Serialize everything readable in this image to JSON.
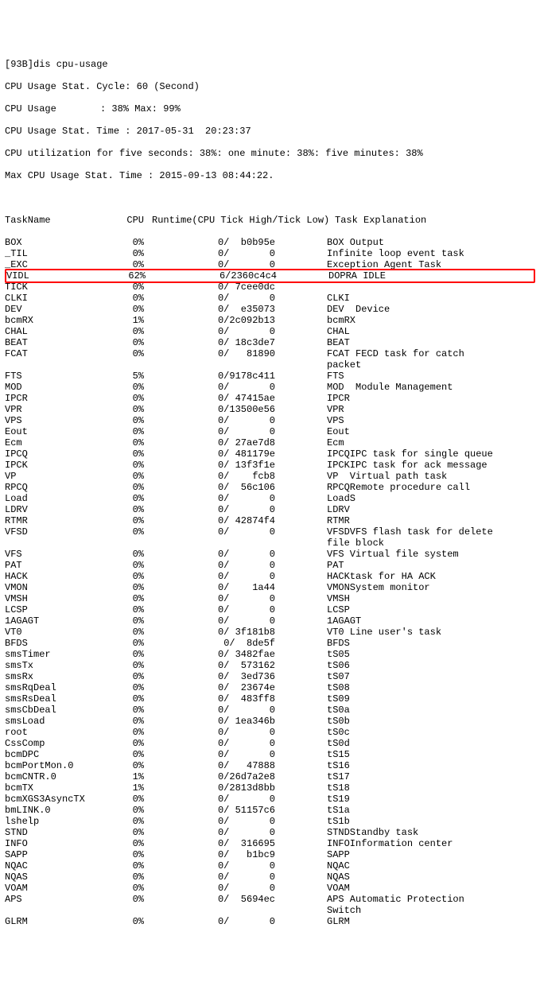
{
  "prompt": "[93B]dis cpu-usage",
  "header": {
    "line1": "CPU Usage Stat. Cycle: 60 (Second)",
    "line2_label": "CPU Usage",
    "line2_value": ": 38% Max: 99%",
    "line3": "CPU Usage Stat. Time : 2017-05-31  20:23:37",
    "line4": "CPU utilization for five seconds: 38%: one minute: 38%: five minutes: 38%",
    "line5": "Max CPU Usage Stat. Time : 2015-09-13 08:44:22."
  },
  "columns": {
    "c1": "TaskName",
    "c2": "CPU",
    "c3": "Runtime(CPU Tick High/Tick Low)",
    "c4": "Task Explanation"
  },
  "highlight_index": 3,
  "rows": [
    {
      "name": "BOX",
      "cpu": "0%",
      "rt": "0/  b0b95e",
      "expl": "BOX Output"
    },
    {
      "name": "_TIL",
      "cpu": "0%",
      "rt": "0/       0",
      "expl": "Infinite loop event task"
    },
    {
      "name": "_EXC",
      "cpu": "0%",
      "rt": "0/       0",
      "expl": "Exception Agent Task"
    },
    {
      "name": "VIDL",
      "cpu": "62%",
      "rt": "6/2360c4c4",
      "expl": "DOPRA IDLE"
    },
    {
      "name": "TICK",
      "cpu": "0%",
      "rt": "0/ 7cee0dc",
      "expl": ""
    },
    {
      "name": "CLKI",
      "cpu": "0%",
      "rt": "0/       0",
      "expl": "CLKI"
    },
    {
      "name": "DEV",
      "cpu": "0%",
      "rt": "0/  e35073",
      "expl": "DEV  Device"
    },
    {
      "name": "bcmRX",
      "cpu": "1%",
      "rt": "0/2c092b13",
      "expl": "bcmRX"
    },
    {
      "name": "CHAL",
      "cpu": "0%",
      "rt": "0/       0",
      "expl": "CHAL"
    },
    {
      "name": "BEAT",
      "cpu": "0%",
      "rt": "0/ 18c3de7",
      "expl": "BEAT"
    },
    {
      "name": "FCAT",
      "cpu": "0%",
      "rt": "0/   81890",
      "expl": "FCAT FECD task for catch"
    },
    {
      "name": "",
      "cpu": "",
      "rt": "",
      "expl": "packet"
    },
    {
      "name": "FTS",
      "cpu": "5%",
      "rt": "0/9178c411",
      "expl": "FTS"
    },
    {
      "name": "MOD",
      "cpu": "0%",
      "rt": "0/       0",
      "expl": "MOD  Module Management"
    },
    {
      "name": "IPCR",
      "cpu": "0%",
      "rt": "0/ 47415ae",
      "expl": "IPCR"
    },
    {
      "name": "VPR",
      "cpu": "0%",
      "rt": "0/13500e56",
      "expl": "VPR"
    },
    {
      "name": "VPS",
      "cpu": "0%",
      "rt": "0/       0",
      "expl": "VPS"
    },
    {
      "name": "Eout",
      "cpu": "0%",
      "rt": "0/       0",
      "expl": "Eout"
    },
    {
      "name": "Ecm",
      "cpu": "0%",
      "rt": "0/ 27ae7d8",
      "expl": "Ecm"
    },
    {
      "name": "IPCQ",
      "cpu": "0%",
      "rt": "0/ 481179e",
      "expl": "IPCQIPC task for single queue"
    },
    {
      "name": "IPCK",
      "cpu": "0%",
      "rt": "0/ 13f3f1e",
      "expl": "IPCKIPC task for ack message"
    },
    {
      "name": "VP",
      "cpu": "0%",
      "rt": "0/    fcb8",
      "expl": "VP  Virtual path task"
    },
    {
      "name": "RPCQ",
      "cpu": "0%",
      "rt": "0/  56c106",
      "expl": "RPCQRemote procedure call"
    },
    {
      "name": "Load",
      "cpu": "0%",
      "rt": "0/       0",
      "expl": "LoadS"
    },
    {
      "name": "LDRV",
      "cpu": "0%",
      "rt": "0/       0",
      "expl": "LDRV"
    },
    {
      "name": "RTMR",
      "cpu": "0%",
      "rt": "0/ 42874f4",
      "expl": "RTMR"
    },
    {
      "name": "VFSD",
      "cpu": "0%",
      "rt": "0/       0",
      "expl": "VFSDVFS flash task for delete"
    },
    {
      "name": "",
      "cpu": "",
      "rt": "",
      "expl": "file block"
    },
    {
      "name": "VFS",
      "cpu": "0%",
      "rt": "0/       0",
      "expl": "VFS Virtual file system"
    },
    {
      "name": "PAT",
      "cpu": "0%",
      "rt": "0/       0",
      "expl": "PAT"
    },
    {
      "name": "HACK",
      "cpu": "0%",
      "rt": "0/       0",
      "expl": "HACKtask for HA ACK"
    },
    {
      "name": "VMON",
      "cpu": "0%",
      "rt": "0/    1a44",
      "expl": "VMONSystem monitor"
    },
    {
      "name": "VMSH",
      "cpu": "0%",
      "rt": "0/       0",
      "expl": "VMSH"
    },
    {
      "name": "LCSP",
      "cpu": "0%",
      "rt": "0/       0",
      "expl": "LCSP"
    },
    {
      "name": "1AGAGT",
      "cpu": "0%",
      "rt": "0/       0",
      "expl": "1AGAGT"
    },
    {
      "name": "VT0",
      "cpu": "0%",
      "rt": "0/ 3f181b8",
      "expl": "VT0 Line user's task"
    },
    {
      "name": "BFDS",
      "cpu": "0%",
      "rt": "0/  8de5f",
      "expl": "BFDS"
    },
    {
      "name": "smsTimer",
      "cpu": "0%",
      "rt": "0/ 3482fae",
      "expl": "tS05"
    },
    {
      "name": "smsTx",
      "cpu": "0%",
      "rt": "0/  573162",
      "expl": "tS06"
    },
    {
      "name": "smsRx",
      "cpu": "0%",
      "rt": "0/  3ed736",
      "expl": "tS07"
    },
    {
      "name": "smsRqDeal",
      "cpu": "0%",
      "rt": "0/  23674e",
      "expl": "tS08"
    },
    {
      "name": "smsRsDeal",
      "cpu": "0%",
      "rt": "0/  483ff8",
      "expl": "tS09"
    },
    {
      "name": "smsCbDeal",
      "cpu": "0%",
      "rt": "0/       0",
      "expl": "tS0a"
    },
    {
      "name": "smsLoad",
      "cpu": "0%",
      "rt": "0/ 1ea346b",
      "expl": "tS0b"
    },
    {
      "name": "root",
      "cpu": "0%",
      "rt": "0/       0",
      "expl": "tS0c"
    },
    {
      "name": "CssComp",
      "cpu": "0%",
      "rt": "0/       0",
      "expl": "tS0d"
    },
    {
      "name": "bcmDPC",
      "cpu": "0%",
      "rt": "0/       0",
      "expl": "tS15"
    },
    {
      "name": "bcmPortMon.0",
      "cpu": "0%",
      "rt": "0/   47888",
      "expl": "tS16"
    },
    {
      "name": "bcmCNTR.0",
      "cpu": "1%",
      "rt": "0/26d7a2e8",
      "expl": "tS17"
    },
    {
      "name": "bcmTX",
      "cpu": "1%",
      "rt": "0/2813d8bb",
      "expl": "tS18"
    },
    {
      "name": "bcmXGS3AsyncTX",
      "cpu": "0%",
      "rt": "0/       0",
      "expl": "tS19"
    },
    {
      "name": "bmLINK.0",
      "cpu": "0%",
      "rt": "0/ 51157c6",
      "expl": "tS1a"
    },
    {
      "name": "lshelp",
      "cpu": "0%",
      "rt": "0/       0",
      "expl": "tS1b"
    },
    {
      "name": "STND",
      "cpu": "0%",
      "rt": "0/       0",
      "expl": "STNDStandby task"
    },
    {
      "name": "INFO",
      "cpu": "0%",
      "rt": "0/  316695",
      "expl": "INFOInformation center"
    },
    {
      "name": "SAPP",
      "cpu": "0%",
      "rt": "0/   b1bc9",
      "expl": "SAPP"
    },
    {
      "name": "NQAC",
      "cpu": "0%",
      "rt": "0/       0",
      "expl": "NQAC"
    },
    {
      "name": "NQAS",
      "cpu": "0%",
      "rt": "0/       0",
      "expl": "NQAS"
    },
    {
      "name": "VOAM",
      "cpu": "0%",
      "rt": "0/       0",
      "expl": "VOAM"
    },
    {
      "name": "APS",
      "cpu": "0%",
      "rt": "0/  5694ec",
      "expl": "APS Automatic Protection"
    },
    {
      "name": "",
      "cpu": "",
      "rt": "",
      "expl": "Switch"
    },
    {
      "name": "GLRM",
      "cpu": "0%",
      "rt": "0/       0",
      "expl": "GLRM"
    }
  ]
}
